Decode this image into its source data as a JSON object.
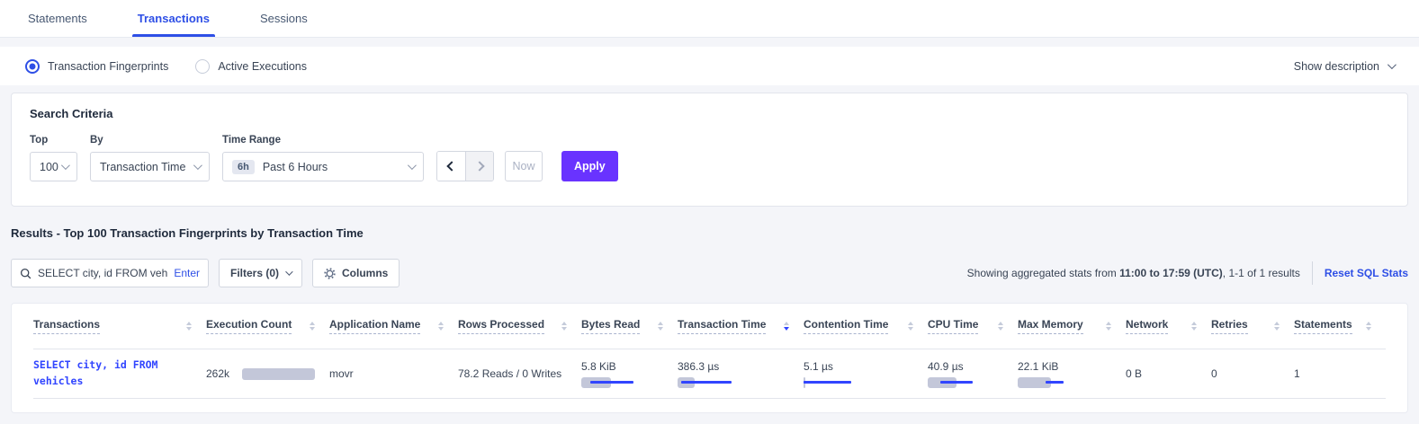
{
  "tabs": [
    {
      "label": "Statements",
      "active": false
    },
    {
      "label": "Transactions",
      "active": true
    },
    {
      "label": "Sessions",
      "active": false
    }
  ],
  "view_toggle": {
    "options": [
      {
        "label": "Transaction Fingerprints",
        "selected": true
      },
      {
        "label": "Active Executions",
        "selected": false
      }
    ],
    "show_description": "Show description"
  },
  "search_criteria": {
    "title": "Search Criteria",
    "top": {
      "label": "Top",
      "value": "100"
    },
    "by": {
      "label": "By",
      "value": "Transaction Time"
    },
    "time_range": {
      "label": "Time Range",
      "badge": "6h",
      "value": "Past 6 Hours"
    },
    "now_label": "Now",
    "apply_label": "Apply"
  },
  "results": {
    "heading": "Results - Top 100 Transaction Fingerprints by Transaction Time",
    "search": {
      "value": "SELECT city, id FROM vehicles W",
      "enter_label": "Enter"
    },
    "filters_label": "Filters (0)",
    "columns_label": "Columns",
    "stats_prefix": "Showing aggregated stats from ",
    "stats_bold": "11:00 to 17:59 (UTC)",
    "stats_suffix": ", 1-1 of 1 results",
    "reset_link": "Reset SQL Stats"
  },
  "table": {
    "columns": [
      "Transactions",
      "Execution Count",
      "Application Name",
      "Rows Processed",
      "Bytes Read",
      "Transaction Time",
      "Contention Time",
      "CPU Time",
      "Max Memory",
      "Network",
      "Retries",
      "Statements"
    ],
    "sorted_column": "Transaction Time",
    "sort_direction": "desc",
    "row": {
      "transaction": "SELECT city, id FROM vehicles",
      "execution_count": "262k",
      "application_name": "movr",
      "rows_processed": "78.2 Reads / 0 Writes",
      "bytes_read": "5.8 KiB",
      "transaction_time": "386.3 µs",
      "contention_time": "5.1 µs",
      "cpu_time": "40.9 µs",
      "max_memory": "22.1 KiB",
      "network": "0 B",
      "retries": "0",
      "statements": "1"
    },
    "bars": {
      "execution_count": {
        "gray": 100
      },
      "bytes_read": {
        "gray": 52,
        "line": [
          15,
          90
        ]
      },
      "transaction_time": {
        "gray": 22,
        "line": [
          4,
          68
        ]
      },
      "contention_time": {
        "gray": 3,
        "line": [
          0,
          85
        ]
      },
      "cpu_time": {
        "gray": 55,
        "line": [
          24,
          86
        ]
      },
      "max_memory": {
        "gray": 58,
        "line": [
          48,
          80
        ]
      }
    }
  },
  "colors": {
    "accent_blue": "#2e4fe6",
    "sql_link_blue": "#3145ff",
    "apply_purple": "#6933ff",
    "bar_gray": "#c3c7d9"
  }
}
